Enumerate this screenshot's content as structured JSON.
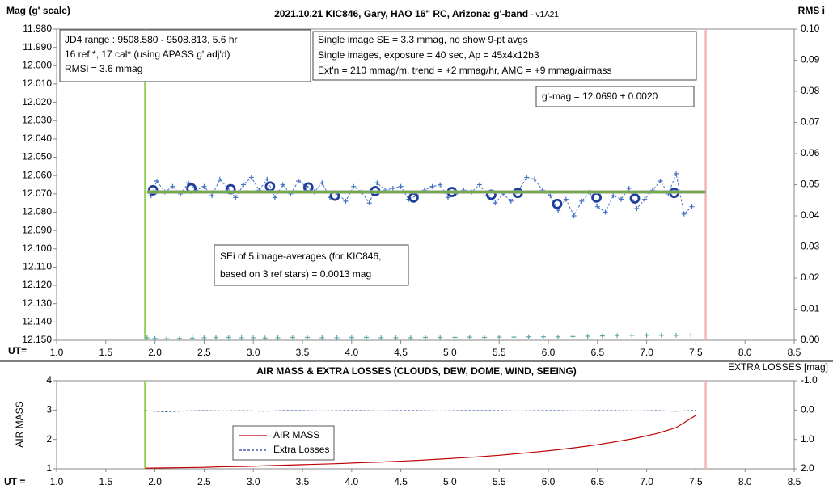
{
  "chart_data": [
    {
      "type": "line",
      "title": "2021.10.21 KIC846, Gary, HAO 16\" RC, Arizona: g'-band",
      "subtitle": "- v1A21",
      "y_label": "Mag (g' scale)",
      "y2_label": "RMS i",
      "x_label": "UT=",
      "xlim": [
        1.0,
        8.5
      ],
      "xticks": [
        {
          "value": 1.0,
          "label": "1.0"
        },
        {
          "value": 1.5,
          "label": "1.5"
        },
        {
          "value": 2.0,
          "label": "2.0"
        },
        {
          "value": 2.5,
          "label": "2.5"
        },
        {
          "value": 3.0,
          "label": "3.0"
        },
        {
          "value": 3.5,
          "label": "3.5"
        },
        {
          "value": 4.0,
          "label": "4.0"
        },
        {
          "value": 4.5,
          "label": "4.5"
        },
        {
          "value": 5.0,
          "label": "5.0"
        },
        {
          "value": 5.5,
          "label": "5.5"
        },
        {
          "value": 6.0,
          "label": "6.0"
        },
        {
          "value": 6.5,
          "label": "6.5"
        },
        {
          "value": 7.0,
          "label": "7.0"
        },
        {
          "value": 7.5,
          "label": "7.5"
        },
        {
          "value": 8.0,
          "label": "8.0"
        },
        {
          "value": 8.5,
          "label": "8.5"
        }
      ],
      "ylim": [
        12.15,
        11.98
      ],
      "yticks": [
        {
          "value": 11.98,
          "label": "11.980"
        },
        {
          "value": 11.99,
          "label": "11.990"
        },
        {
          "value": 12.0,
          "label": "12.000"
        },
        {
          "value": 12.01,
          "label": "12.010"
        },
        {
          "value": 12.02,
          "label": "12.020"
        },
        {
          "value": 12.03,
          "label": "12.030"
        },
        {
          "value": 12.04,
          "label": "12.040"
        },
        {
          "value": 12.05,
          "label": "12.050"
        },
        {
          "value": 12.06,
          "label": "12.060"
        },
        {
          "value": 12.07,
          "label": "12.070"
        },
        {
          "value": 12.08,
          "label": "12.080"
        },
        {
          "value": 12.09,
          "label": "12.090"
        },
        {
          "value": 12.1,
          "label": "12.100"
        },
        {
          "value": 12.11,
          "label": "12.110"
        },
        {
          "value": 12.12,
          "label": "12.120"
        },
        {
          "value": 12.13,
          "label": "12.130"
        },
        {
          "value": 12.14,
          "label": "12.140"
        },
        {
          "value": 12.15,
          "label": "12.150"
        }
      ],
      "y2lim": [
        0,
        0.1
      ],
      "y2ticks": [
        {
          "value": 0,
          "label": "0.00"
        },
        {
          "value": 0.01,
          "label": "0.01"
        },
        {
          "value": 0.02,
          "label": "0.02"
        },
        {
          "value": 0.03,
          "label": "0.03"
        },
        {
          "value": 0.04,
          "label": "0.04"
        },
        {
          "value": 0.05,
          "label": "0.05"
        },
        {
          "value": 0.06,
          "label": "0.06"
        },
        {
          "value": 0.07,
          "label": "0.07"
        },
        {
          "value": 0.08,
          "label": "0.08"
        },
        {
          "value": 0.09,
          "label": "0.09"
        },
        {
          "value": 0.1,
          "label": "0.10"
        }
      ],
      "grid": false,
      "vlines": [
        {
          "x": 1.9,
          "color": "#92d050"
        },
        {
          "x": 7.6,
          "color": "#f4b6b6"
        }
      ],
      "annotations": [
        {
          "lines": [
            "JD4 range : 9508.580 - 9508.813,  5.6  hr",
            "16 ref *, 17 cal* (using APASS g' adj'd)",
            "RMSi = 3.6 mmag"
          ]
        },
        {
          "lines": [
            "Single image SE = 3.3 mmag, no show  9-pt avgs",
            "Single images, exposure = 40 sec, Ap = 45x4x12b3",
            "Ext'n = 210 mmag/m, trend = +2 mmag/hr, AMC = +9 mmag/airmass"
          ]
        },
        {
          "lines": [
            "g'-mag = 12.0690 ± 0.0020"
          ]
        },
        {
          "lines": [
            "SEi of 5 image-averages (for KIC846,",
            "based on 3 ref stars) = 0.0013 mag"
          ]
        }
      ],
      "series": [
        {
          "color": "#4472c4",
          "line": "dashed",
          "marker": "plus",
          "x": [
            1.96,
            2.02,
            2.1,
            2.18,
            2.26,
            2.34,
            2.42,
            2.5,
            2.58,
            2.66,
            2.74,
            2.82,
            2.9,
            2.98,
            3.06,
            3.14,
            3.22,
            3.3,
            3.38,
            3.46,
            3.54,
            3.62,
            3.7,
            3.78,
            3.86,
            3.94,
            4.02,
            4.1,
            4.18,
            4.26,
            4.34,
            4.42,
            4.5,
            4.58,
            4.66,
            4.74,
            4.82,
            4.9,
            4.98,
            5.06,
            5.14,
            5.22,
            5.3,
            5.38,
            5.46,
            5.54,
            5.62,
            5.7,
            5.78,
            5.86,
            5.94,
            6.02,
            6.1,
            6.18,
            6.26,
            6.34,
            6.42,
            6.5,
            6.58,
            6.66,
            6.74,
            6.82,
            6.9,
            6.98,
            7.06,
            7.14,
            7.22,
            7.3,
            7.38,
            7.46
          ],
          "values": [
            12.071,
            12.063,
            12.069,
            12.066,
            12.07,
            12.064,
            12.068,
            12.066,
            12.071,
            12.062,
            12.067,
            12.072,
            12.065,
            12.061,
            12.068,
            12.062,
            12.072,
            12.065,
            12.07,
            12.063,
            12.066,
            12.069,
            12.064,
            12.072,
            12.07,
            12.074,
            12.066,
            12.069,
            12.075,
            12.064,
            12.068,
            12.067,
            12.066,
            12.073,
            12.071,
            12.068,
            12.066,
            12.065,
            12.072,
            12.07,
            12.068,
            12.069,
            12.065,
            12.071,
            12.075,
            12.07,
            12.074,
            12.068,
            12.061,
            12.062,
            12.068,
            12.071,
            12.079,
            12.073,
            12.082,
            12.074,
            12.069,
            12.077,
            12.08,
            12.071,
            12.073,
            12.067,
            12.078,
            12.073,
            12.068,
            12.063,
            12.07,
            12.059,
            12.081,
            12.077
          ]
        },
        {
          "color": "#1f3f99",
          "line": "none",
          "marker": "circle",
          "x": [
            1.98,
            2.37,
            2.77,
            3.17,
            3.56,
            3.83,
            4.24,
            4.63,
            5.02,
            5.42,
            5.69,
            6.09,
            6.49,
            6.88,
            7.28
          ],
          "values": [
            12.068,
            12.067,
            12.0675,
            12.066,
            12.0665,
            12.071,
            12.0685,
            12.072,
            12.069,
            12.0705,
            12.0695,
            12.0755,
            12.072,
            12.0725,
            12.0695
          ]
        },
        {
          "color": "#70ad47",
          "line": "solid",
          "marker": "none",
          "x": [
            1.92,
            7.6
          ],
          "values": [
            12.069,
            12.069
          ]
        },
        {
          "color": "#5fa8a8",
          "line": "none",
          "marker": "plus",
          "axis": "y2",
          "x": [
            1.92,
            2.0,
            2.12,
            2.25,
            2.38,
            2.5,
            2.62,
            2.75,
            2.88,
            3.0,
            3.12,
            3.25,
            3.4,
            3.55,
            3.7,
            3.85,
            4.0,
            4.15,
            4.3,
            4.45,
            4.6,
            4.75,
            4.9,
            5.05,
            5.2,
            5.35,
            5.5,
            5.65,
            5.8,
            5.95,
            6.1,
            6.25,
            6.4,
            6.55,
            6.7,
            6.85,
            7.0,
            7.15,
            7.3,
            7.45
          ],
          "values": [
            0.0008,
            0.0006,
            0.0005,
            0.0006,
            0.0007,
            0.0008,
            0.0009,
            0.0009,
            0.0008,
            0.0008,
            0.0007,
            0.0008,
            0.0009,
            0.0009,
            0.0008,
            0.0008,
            0.0009,
            0.0009,
            0.0008,
            0.0008,
            0.0008,
            0.0009,
            0.0009,
            0.0009,
            0.001,
            0.0009,
            0.001,
            0.001,
            0.0011,
            0.0011,
            0.0011,
            0.0012,
            0.0013,
            0.0014,
            0.0015,
            0.0016,
            0.0016,
            0.0016,
            0.0016,
            0.0017
          ]
        }
      ]
    },
    {
      "type": "line",
      "title": "AIR MASS & EXTRA LOSSES (CLOUDS, DEW, DOME, WIND, SEEING)",
      "y_label": "AIR MASS",
      "y2_label": "EXTRA LOSSES [mag]",
      "x_label": "UT =",
      "xlim": [
        1.0,
        8.5
      ],
      "xticks": [
        {
          "value": 1.0,
          "label": "1.0"
        },
        {
          "value": 1.5,
          "label": "1.5"
        },
        {
          "value": 2.0,
          "label": "2.0"
        },
        {
          "value": 2.5,
          "label": "2.5"
        },
        {
          "value": 3.0,
          "label": "3.0"
        },
        {
          "value": 3.5,
          "label": "3.5"
        },
        {
          "value": 4.0,
          "label": "4.0"
        },
        {
          "value": 4.5,
          "label": "4.5"
        },
        {
          "value": 5.0,
          "label": "5.0"
        },
        {
          "value": 5.5,
          "label": "5.5"
        },
        {
          "value": 6.0,
          "label": "6.0"
        },
        {
          "value": 6.5,
          "label": "6.5"
        },
        {
          "value": 7.0,
          "label": "7.0"
        },
        {
          "value": 7.5,
          "label": "7.5"
        },
        {
          "value": 8.0,
          "label": "8.0"
        },
        {
          "value": 8.5,
          "label": "8.5"
        }
      ],
      "ylim": [
        1,
        4
      ],
      "yticks": [
        1,
        2,
        3,
        4
      ],
      "y2lim": [
        2.0,
        -1.0
      ],
      "y2ticks": [
        {
          "value": -1.0,
          "label": "-1.0"
        },
        {
          "value": 0.0,
          "label": "0.0"
        },
        {
          "value": 1.0,
          "label": "1.0"
        },
        {
          "value": 2.0,
          "label": "2.0"
        }
      ],
      "grid": false,
      "legend": "lower-left",
      "vlines": [
        {
          "x": 1.9,
          "color": "#92d050"
        },
        {
          "x": 7.6,
          "color": "#f4b6b6"
        }
      ],
      "x": [
        1.9,
        2.1,
        2.3,
        2.5,
        2.7,
        2.9,
        3.1,
        3.3,
        3.5,
        3.7,
        3.9,
        4.1,
        4.3,
        4.5,
        4.7,
        4.9,
        5.1,
        5.3,
        5.5,
        5.7,
        5.9,
        6.1,
        6.3,
        6.5,
        6.7,
        6.9,
        7.1,
        7.3,
        7.5
      ],
      "series": [
        {
          "name": "AIR MASS",
          "color": "#c00000",
          "line": "solid",
          "marker": "none",
          "values": [
            1.02,
            1.03,
            1.04,
            1.05,
            1.07,
            1.08,
            1.1,
            1.12,
            1.14,
            1.16,
            1.18,
            1.21,
            1.23,
            1.26,
            1.29,
            1.33,
            1.37,
            1.41,
            1.46,
            1.52,
            1.58,
            1.65,
            1.73,
            1.82,
            1.93,
            2.05,
            2.2,
            2.4,
            2.82
          ]
        },
        {
          "name": "Extra Losses",
          "color": "#1f3f99",
          "line": "dashed",
          "marker": "none",
          "axis": "y2",
          "values": [
            0.02,
            0.06,
            0.03,
            0.02,
            0.03,
            0.02,
            0.04,
            0.02,
            0.02,
            0.03,
            0.02,
            0.02,
            0.03,
            0.02,
            0.02,
            0.03,
            0.02,
            0.02,
            0.02,
            0.03,
            0.02,
            0.02,
            0.03,
            0.02,
            0.02,
            0.03,
            0.02,
            0.04,
            0.01
          ]
        }
      ]
    }
  ]
}
